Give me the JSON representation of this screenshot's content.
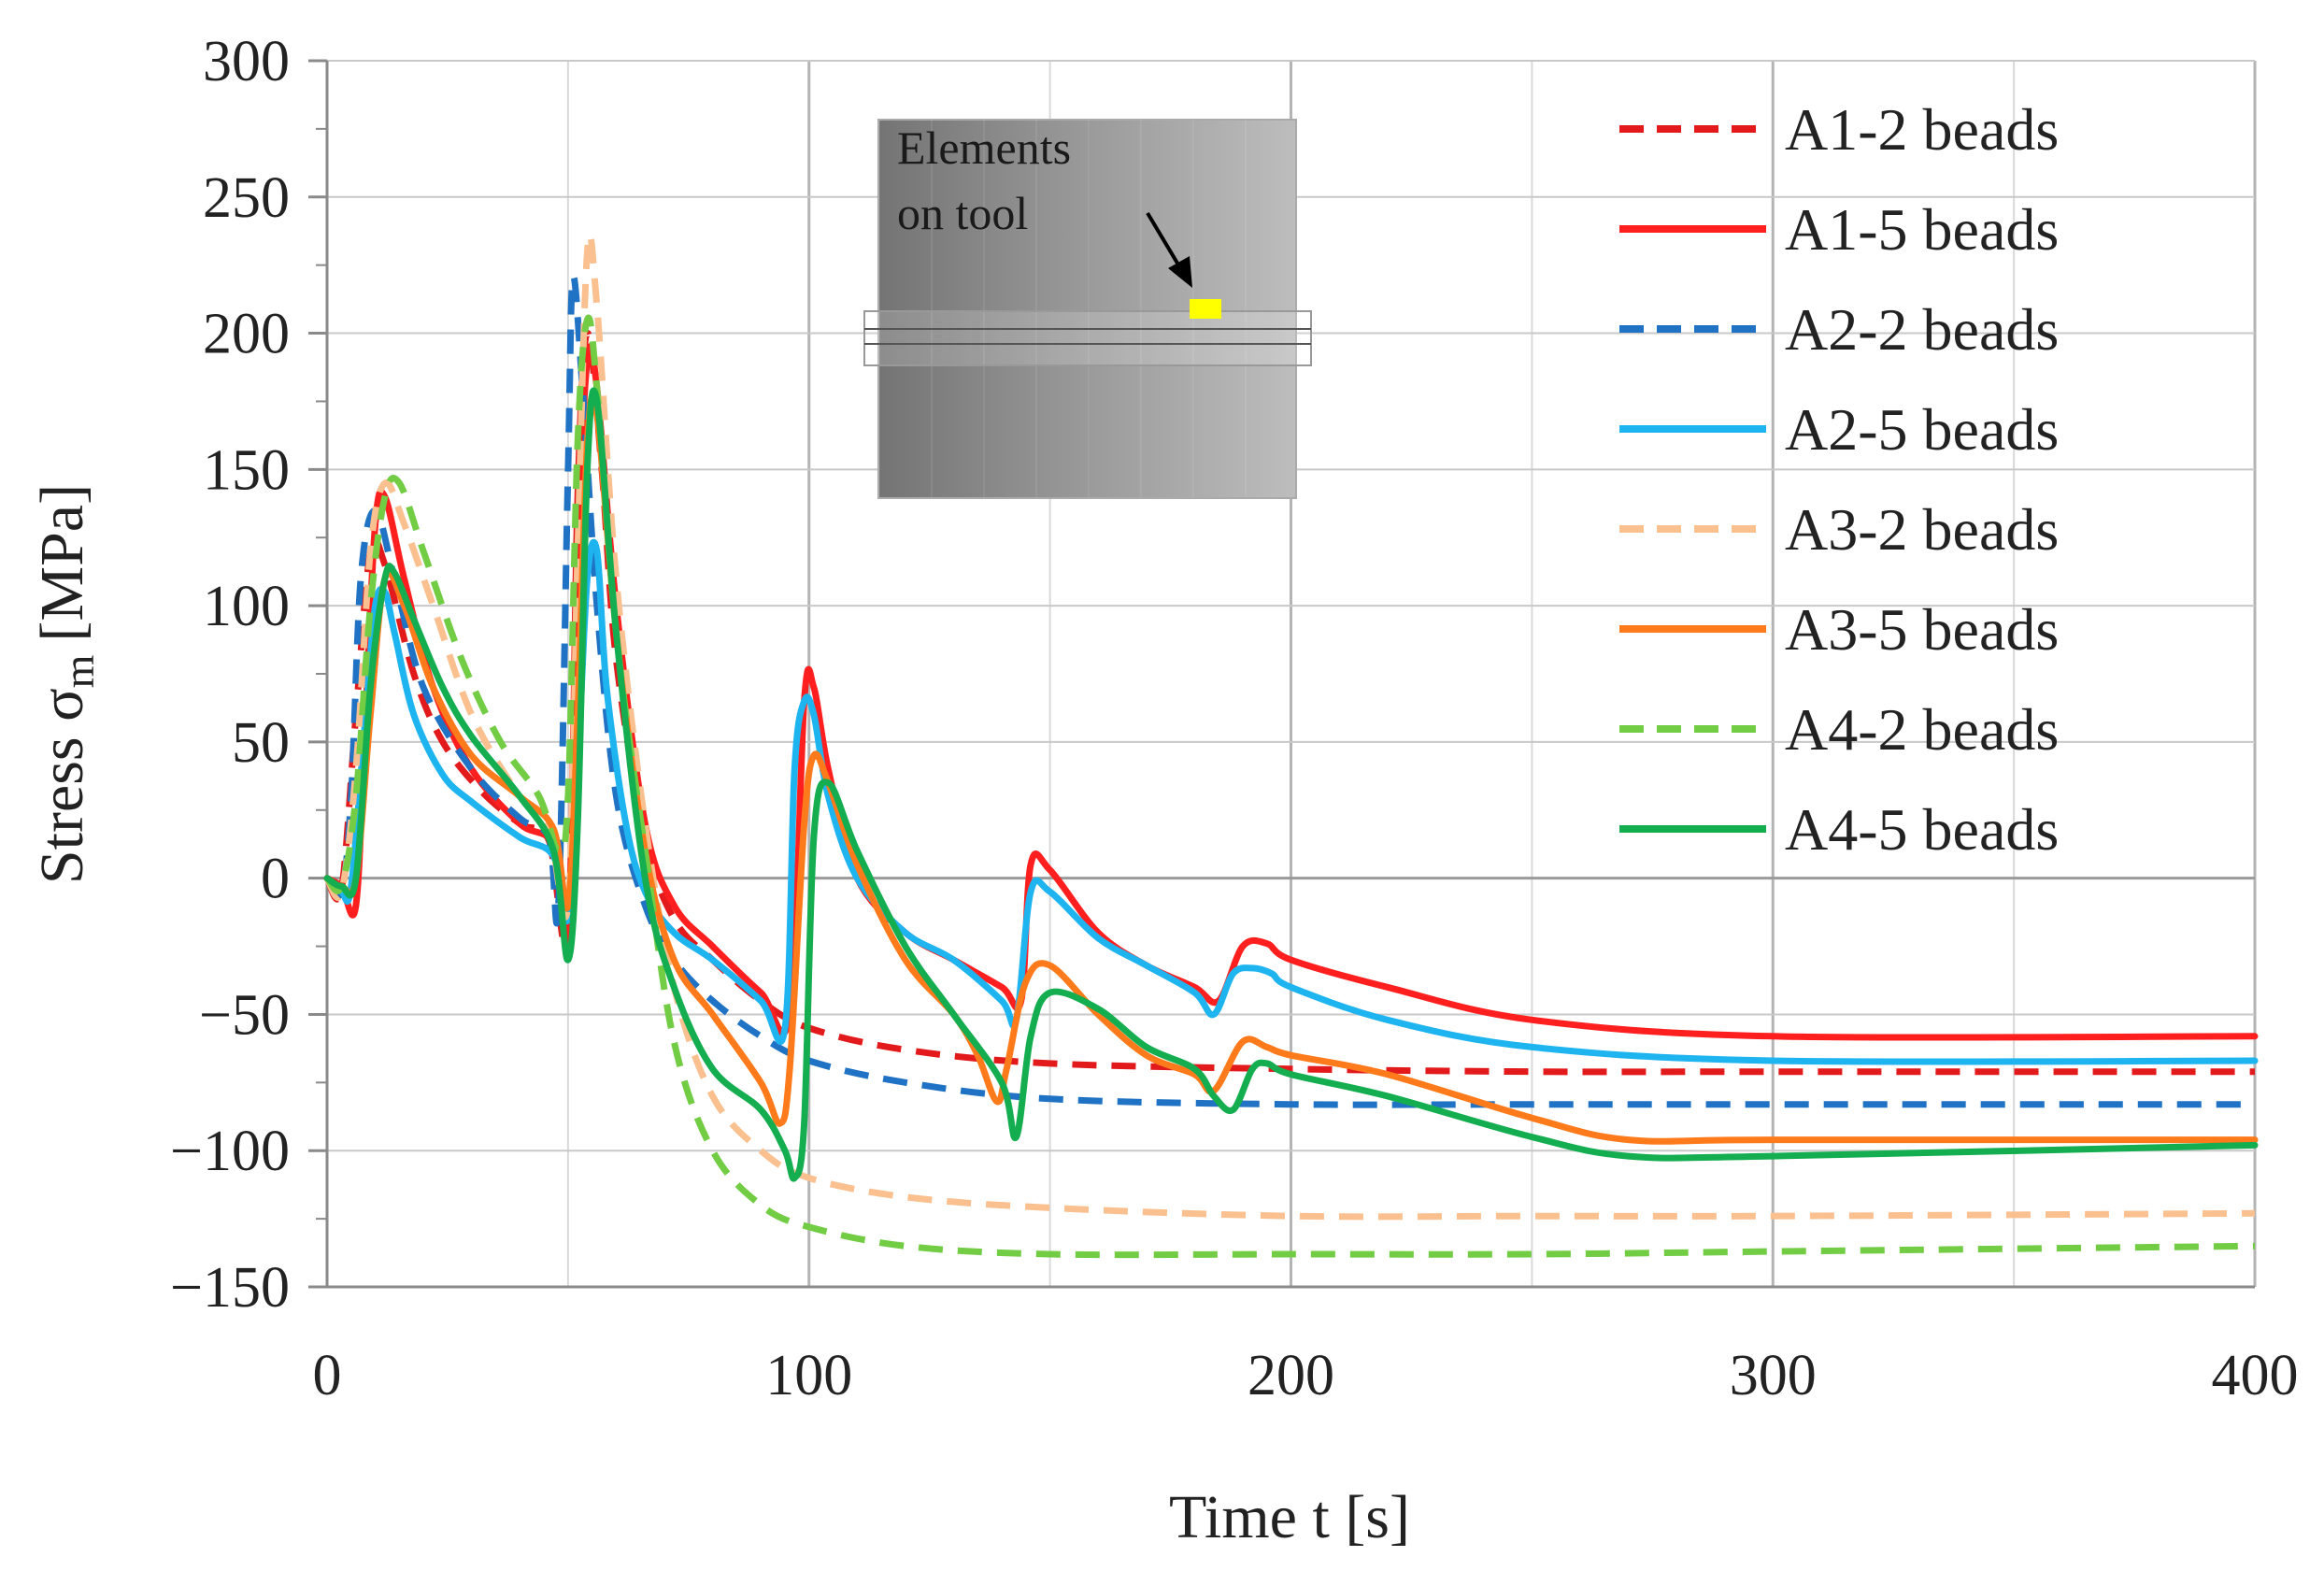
{
  "chart_data": {
    "type": "line",
    "xlabel": "Time t [s]",
    "ylabel": "Stress σ",
    "ylabel_subscript": "m",
    "ylabel_unit": "[MPa]",
    "xlim": [
      0,
      400
    ],
    "ylim": [
      -150,
      300
    ],
    "xticks": [
      0,
      100,
      200,
      300,
      400
    ],
    "yticks": [
      300,
      250,
      200,
      150,
      100,
      50,
      0,
      -50,
      -100,
      -150
    ],
    "xtick_labels": [
      "0",
      "100",
      "200",
      "300",
      "400"
    ],
    "ytick_labels": [
      "300",
      "250",
      "200",
      "150",
      "100",
      "50",
      "0",
      "−50",
      "−100",
      "−150"
    ],
    "grid": true,
    "legend_position": "top-right",
    "inset": {
      "label_line1": "Elements",
      "label_line2": "on tool",
      "marker_color": "#ffff00"
    },
    "series": [
      {
        "name": "A1-2 beads",
        "color": "#e31a1c",
        "dash": true,
        "x": [
          0,
          3,
          6,
          9,
          12,
          18,
          24,
          32,
          40,
          46,
          50,
          52,
          54,
          57,
          60,
          66,
          72,
          80,
          90,
          100,
          120,
          150,
          200,
          250,
          300,
          400
        ],
        "y": [
          0,
          -4,
          60,
          120,
          115,
          75,
          50,
          32,
          20,
          14,
          -20,
          140,
          200,
          150,
          80,
          15,
          -15,
          -30,
          -45,
          -55,
          -63,
          -68,
          -70,
          -71,
          -71,
          -71
        ]
      },
      {
        "name": "A1-5 beads",
        "color": "#ff1f1f",
        "dash": false,
        "x": [
          0,
          3,
          6,
          8,
          10,
          12,
          16,
          22,
          30,
          40,
          47,
          50,
          52,
          54,
          56,
          60,
          66,
          72,
          80,
          90,
          96,
          99,
          101,
          104,
          110,
          120,
          130,
          140,
          144,
          146,
          150,
          160,
          170,
          180,
          185,
          190,
          195,
          200,
          220,
          250,
          300,
          400
        ],
        "y": [
          0,
          -3,
          -10,
          60,
          130,
          140,
          110,
          70,
          40,
          20,
          12,
          -20,
          120,
          190,
          180,
          100,
          20,
          -10,
          -25,
          -42,
          -50,
          65,
          70,
          40,
          0,
          -20,
          -30,
          -40,
          -45,
          5,
          3,
          -20,
          -32,
          -40,
          -45,
          -25,
          -24,
          -30,
          -40,
          -52,
          -58,
          -58
        ]
      },
      {
        "name": "A2-2 beads",
        "color": "#1f72c4",
        "dash": true,
        "x": [
          0,
          3,
          5,
          7,
          10,
          14,
          20,
          30,
          40,
          46,
          48,
          50,
          51,
          53,
          56,
          60,
          66,
          72,
          80,
          90,
          100,
          120,
          150,
          200,
          250,
          300,
          400
        ],
        "y": [
          0,
          -5,
          30,
          110,
          135,
          110,
          70,
          40,
          22,
          15,
          -10,
          150,
          220,
          180,
          100,
          30,
          -10,
          -30,
          -45,
          -58,
          -67,
          -75,
          -81,
          -83,
          -83,
          -83,
          -83
        ]
      },
      {
        "name": "A2-5 beads",
        "color": "#1eb4f0",
        "dash": false,
        "x": [
          0,
          3,
          5,
          8,
          10,
          12,
          14,
          18,
          24,
          30,
          40,
          47,
          50,
          52,
          54,
          56,
          58,
          62,
          66,
          72,
          80,
          90,
          95,
          97,
          99,
          101,
          104,
          110,
          120,
          130,
          140,
          143,
          146,
          150,
          160,
          170,
          180,
          184,
          188,
          192,
          196,
          200,
          220,
          250,
          300,
          400
        ],
        "y": [
          0,
          -5,
          -3,
          60,
          100,
          105,
          90,
          60,
          38,
          28,
          15,
          8,
          -15,
          40,
          110,
          120,
          70,
          20,
          -5,
          -20,
          -30,
          -45,
          -55,
          40,
          65,
          60,
          30,
          0,
          -20,
          -30,
          -45,
          -52,
          -5,
          -5,
          -22,
          -32,
          -42,
          -50,
          -35,
          -33,
          -35,
          -40,
          -52,
          -62,
          -67,
          -67
        ]
      },
      {
        "name": "A3-2 beads",
        "color": "#fac090",
        "dash": true,
        "x": [
          0,
          3,
          6,
          9,
          12,
          16,
          22,
          30,
          40,
          46,
          50,
          52,
          54,
          56,
          60,
          66,
          72,
          80,
          90,
          100,
          120,
          150,
          200,
          250,
          300,
          400
        ],
        "y": [
          0,
          -5,
          40,
          120,
          145,
          130,
          100,
          60,
          30,
          18,
          -10,
          120,
          230,
          210,
          110,
          20,
          -40,
          -80,
          -100,
          -110,
          -117,
          -121,
          -124,
          -124,
          -124,
          -123
        ]
      },
      {
        "name": "A3-5 beads",
        "color": "#ff7a1a",
        "dash": false,
        "x": [
          0,
          3,
          6,
          9,
          12,
          16,
          22,
          30,
          40,
          47,
          50,
          52,
          54,
          56,
          60,
          66,
          72,
          80,
          90,
          94,
          96,
          99,
          101,
          104,
          110,
          120,
          130,
          135,
          139,
          141,
          145,
          150,
          160,
          170,
          180,
          184,
          190,
          195,
          200,
          220,
          250,
          270,
          300,
          400
        ],
        "y": [
          0,
          -3,
          0,
          60,
          110,
          100,
          70,
          45,
          30,
          18,
          -10,
          60,
          160,
          170,
          90,
          10,
          -30,
          -50,
          -75,
          -90,
          -70,
          20,
          45,
          35,
          5,
          -30,
          -50,
          -65,
          -82,
          -70,
          -38,
          -32,
          -50,
          -65,
          -72,
          -78,
          -60,
          -62,
          -65,
          -72,
          -88,
          -96,
          -96,
          -96
        ]
      },
      {
        "name": "A4-2 beads",
        "color": "#72cc44",
        "dash": true,
        "x": [
          0,
          3,
          6,
          9,
          12,
          15,
          20,
          28,
          36,
          44,
          48,
          50,
          52,
          54,
          56,
          60,
          66,
          72,
          80,
          90,
          100,
          120,
          150,
          200,
          250,
          300,
          400
        ],
        "y": [
          0,
          -3,
          30,
          100,
          140,
          145,
          120,
          80,
          50,
          30,
          10,
          30,
          160,
          205,
          180,
          90,
          10,
          -60,
          -100,
          -120,
          -128,
          -135,
          -138,
          -138,
          -138,
          -137,
          -135
        ]
      },
      {
        "name": "A4-5 beads",
        "color": "#14ad50",
        "dash": false,
        "x": [
          0,
          3,
          6,
          9,
          12,
          14,
          18,
          24,
          30,
          40,
          47,
          50,
          52,
          54,
          56,
          60,
          66,
          72,
          80,
          90,
          95,
          97,
          99,
          101,
          104,
          110,
          120,
          130,
          140,
          143,
          146,
          150,
          160,
          170,
          180,
          184,
          188,
          192,
          195,
          200,
          220,
          250,
          270,
          300,
          400
        ],
        "y": [
          0,
          -3,
          0,
          70,
          110,
          112,
          95,
          70,
          52,
          30,
          10,
          -30,
          20,
          150,
          175,
          90,
          0,
          -40,
          -70,
          -85,
          -100,
          -110,
          -90,
          15,
          35,
          10,
          -25,
          -50,
          -75,
          -95,
          -58,
          -42,
          -48,
          -62,
          -70,
          -80,
          -85,
          -70,
          -68,
          -72,
          -80,
          -95,
          -102,
          -102,
          -98
        ]
      }
    ]
  }
}
